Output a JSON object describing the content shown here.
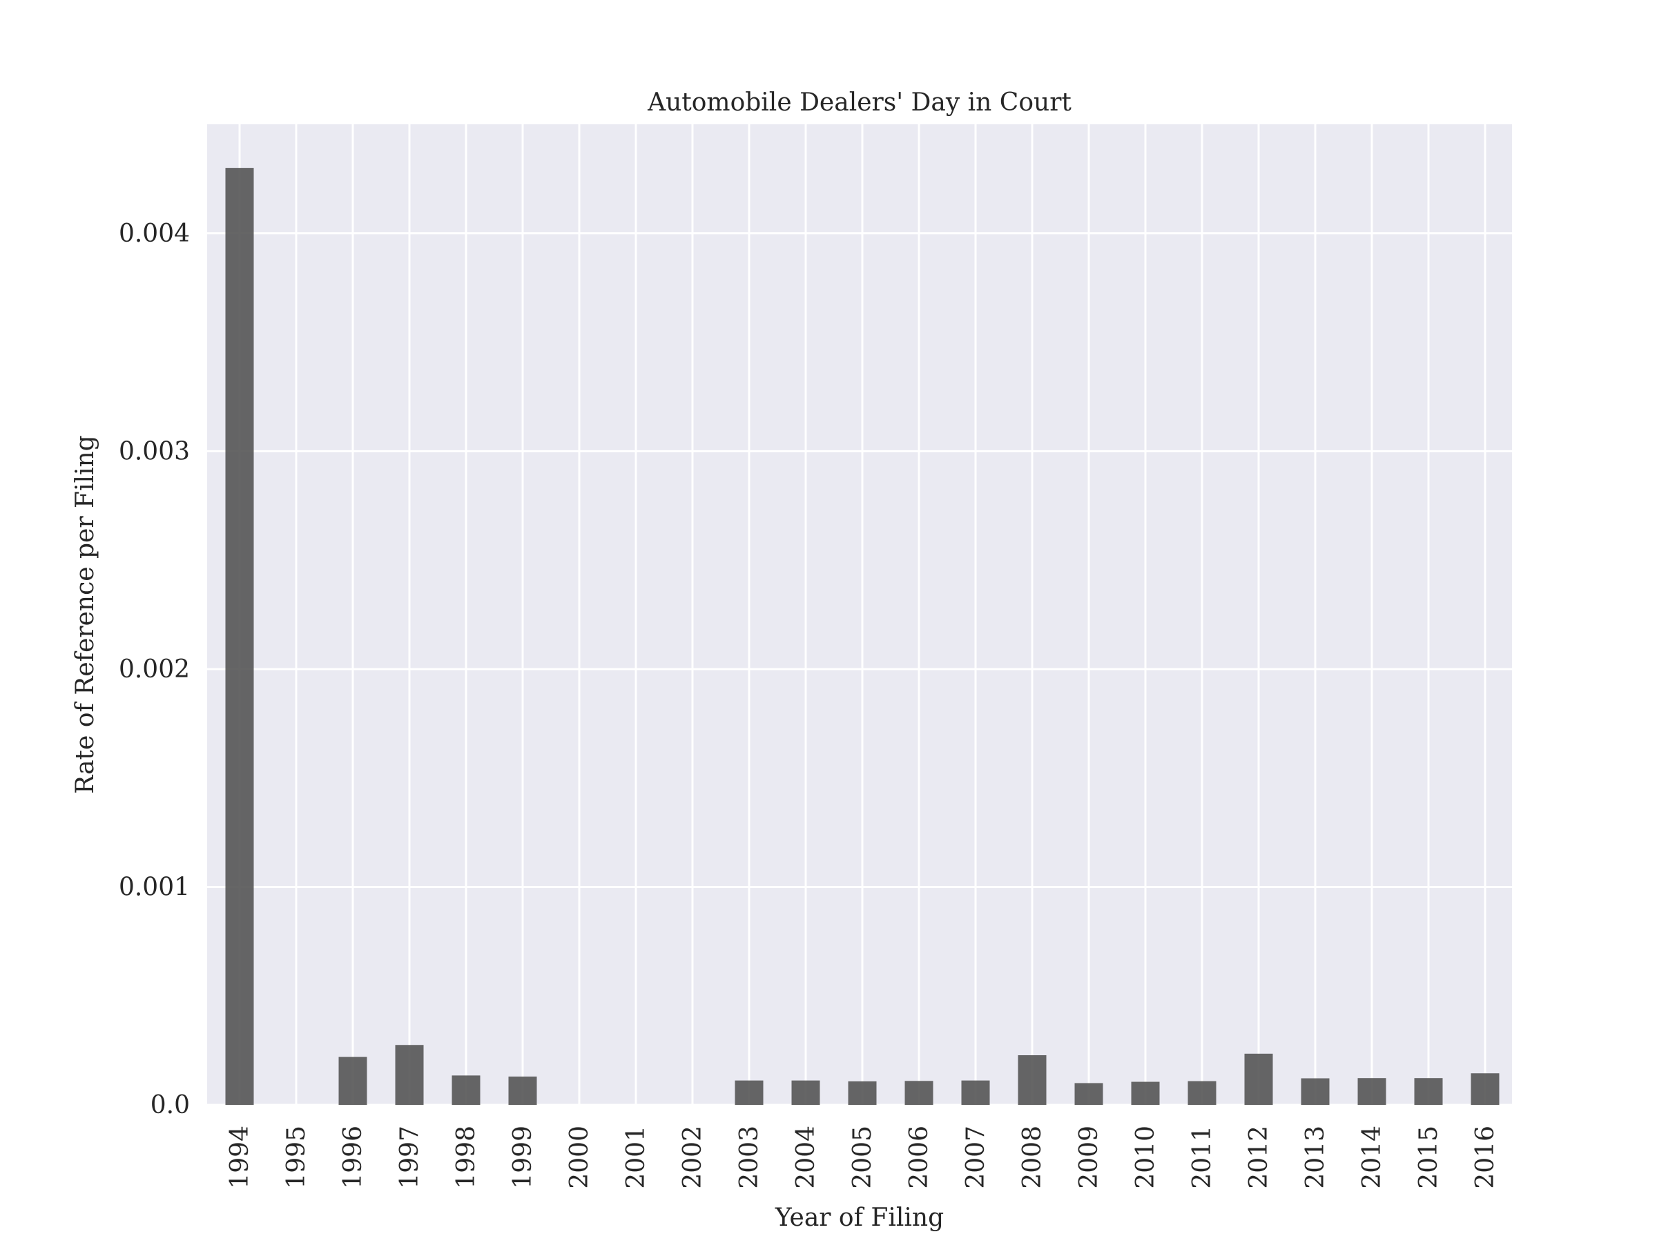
{
  "chart_data": {
    "type": "bar",
    "title": "Automobile Dealers' Day in Court",
    "xlabel": "Year of Filing",
    "ylabel": "Rate of Reference per Filing",
    "categories": [
      "1994",
      "1995",
      "1996",
      "1997",
      "1998",
      "1999",
      "2000",
      "2001",
      "2002",
      "2003",
      "2004",
      "2005",
      "2006",
      "2007",
      "2008",
      "2009",
      "2010",
      "2011",
      "2012",
      "2013",
      "2014",
      "2015",
      "2016"
    ],
    "values": [
      0.0043,
      0.0,
      0.00022,
      0.000275,
      0.000135,
      0.00013,
      0.0,
      0.0,
      0.0,
      0.000112,
      0.000112,
      0.000108,
      0.00011,
      0.000112,
      0.000228,
      0.0001,
      0.000106,
      0.000109,
      0.000235,
      0.000122,
      0.000123,
      0.000123,
      0.000145
    ],
    "yticks": [
      0.0,
      0.001,
      0.002,
      0.003,
      0.004
    ],
    "ytick_labels": [
      "0.0",
      "0.001",
      "0.002",
      "0.003",
      "0.004"
    ],
    "ylim": [
      0,
      0.0045
    ],
    "grid": true,
    "colors": {
      "bar": "#555555",
      "background": "#eaeaf2",
      "grid": "#ffffff"
    }
  }
}
